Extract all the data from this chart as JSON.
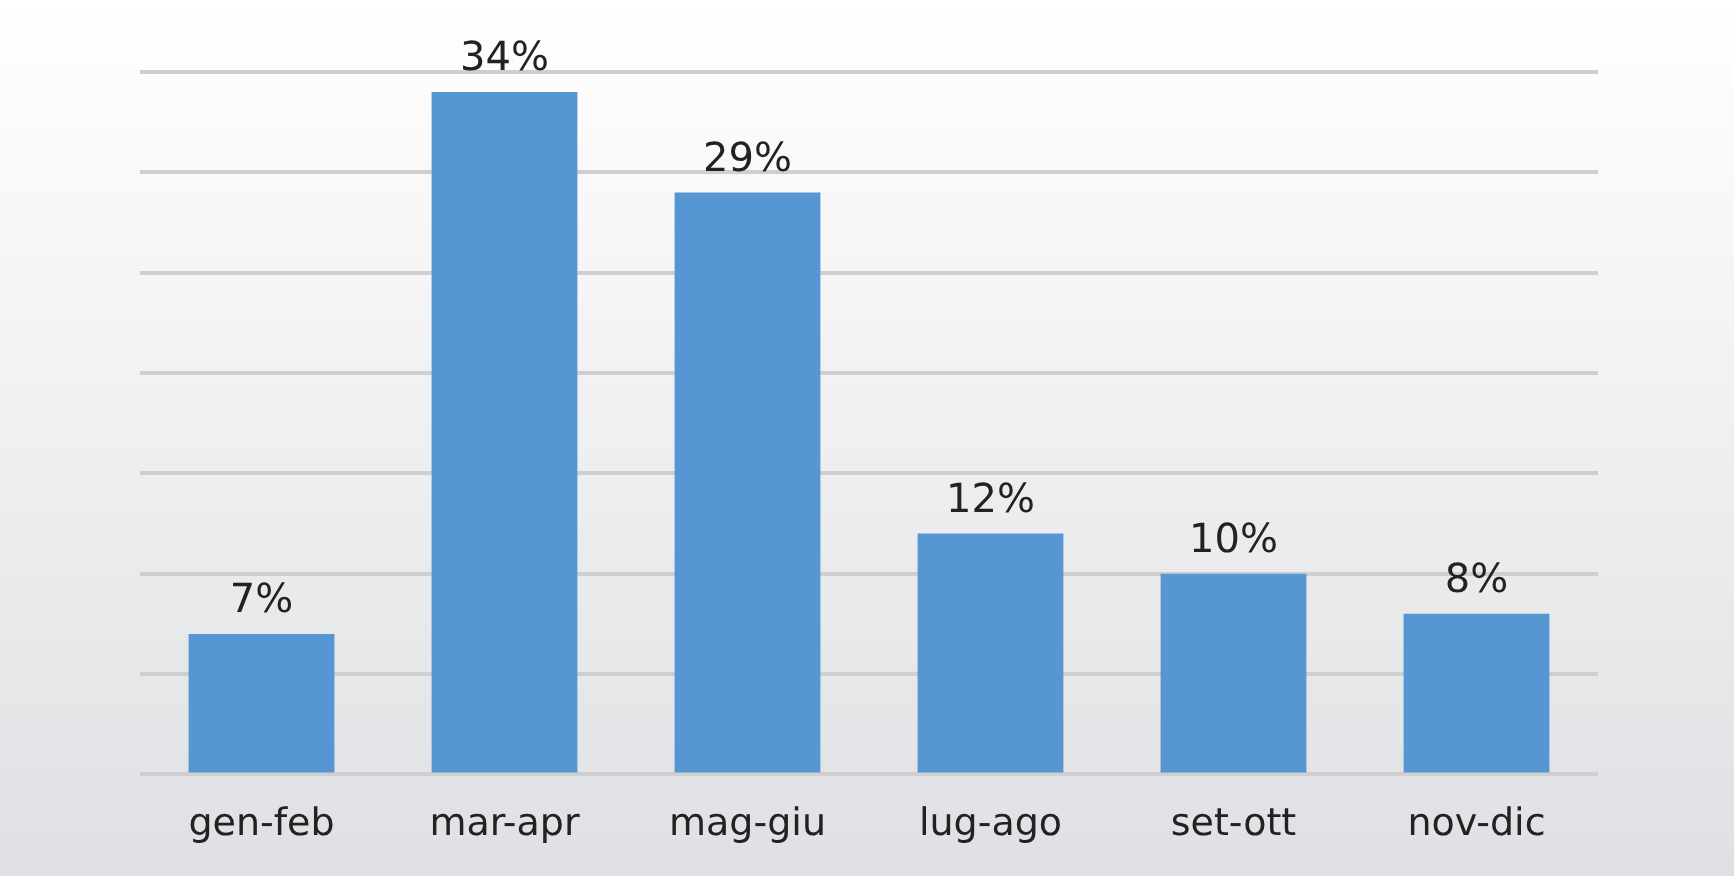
{
  "chart_data": {
    "type": "bar",
    "categories": [
      "gen-feb",
      "mar-apr",
      "mag-giu",
      "lug-ago",
      "set-ott",
      "nov-dic"
    ],
    "values": [
      7,
      34,
      29,
      12,
      10,
      8
    ],
    "value_labels": [
      "7%",
      "34%",
      "29%",
      "12%",
      "10%",
      "8%"
    ],
    "color": "#5596d3",
    "ylim": [
      0,
      35
    ],
    "yticks": [
      {
        "value": 0,
        "label": null
      },
      {
        "value": 5,
        "label": null
      },
      {
        "value": 10,
        "label": null
      },
      {
        "value": 15,
        "label": null
      },
      {
        "value": 20,
        "label": null
      },
      {
        "value": 25,
        "label": null
      },
      {
        "value": 30,
        "label": null
      },
      {
        "value": 35,
        "label": null
      }
    ],
    "grid": "y",
    "tick_labels": "x",
    "legend": false
  }
}
